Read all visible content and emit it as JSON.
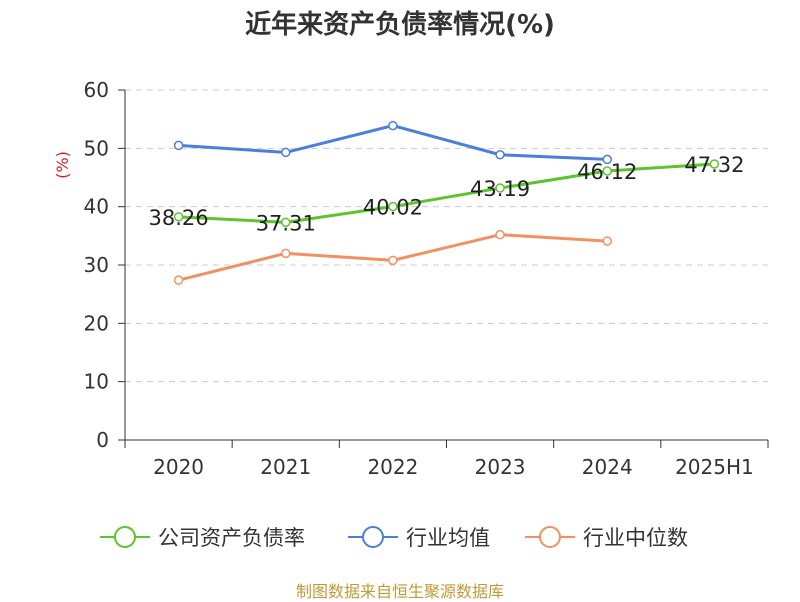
{
  "title": "近年来资产负债率情况(%)",
  "source": "制图数据来自恒生聚源数据库",
  "colors": {
    "company": "#5cc42c",
    "industry_avg": "#4a7fdc",
    "industry_median": "#f39062",
    "ylabel": "#d62020"
  },
  "chart_data": {
    "type": "line",
    "title": "近年来资产负债率情况(%)",
    "xlabel": "",
    "ylabel": "(%)",
    "categories": [
      "2020",
      "2021",
      "2022",
      "2023",
      "2024",
      "2025H1"
    ],
    "ylim": [
      0,
      60
    ],
    "yticks": [
      "0",
      "10",
      "20",
      "30",
      "40",
      "50",
      "60"
    ],
    "grid": true,
    "legend_position": "bottom",
    "series": [
      {
        "name": "公司资产负债率",
        "values": [
          38.26,
          37.31,
          40.02,
          43.19,
          46.12,
          47.32
        ],
        "labels": [
          "38.26",
          "37.31",
          "40.02",
          "43.19",
          "46.12",
          "47.32"
        ],
        "color": "#5cc42c"
      },
      {
        "name": "行业均值",
        "values": [
          50.5,
          49.3,
          53.9,
          48.9,
          48.1,
          null
        ],
        "color": "#4a7fdc"
      },
      {
        "name": "行业中位数",
        "values": [
          27.4,
          32.0,
          30.8,
          35.2,
          34.1,
          null
        ],
        "color": "#f39062"
      }
    ]
  }
}
